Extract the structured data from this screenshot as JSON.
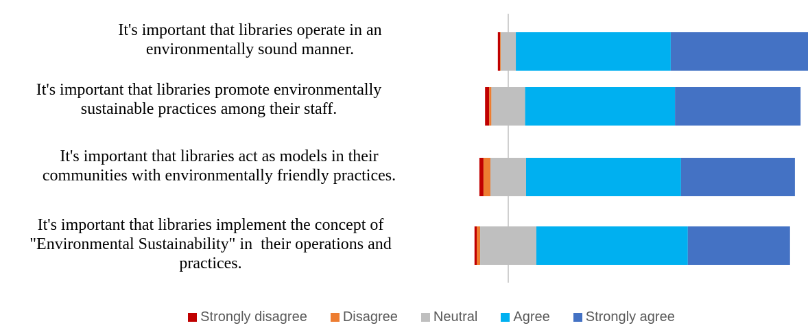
{
  "chart_data": {
    "type": "diverging_bar",
    "categories": [
      "It's important that libraries operate in an environmentally sound manner.",
      "It's important that libraries promote environmentally sustainable practices among their staff.",
      "It's important that libraries act as models in their communities with environmentally friendly practices.",
      "It's important that libraries implement the concept of \"Environmental Sustainability\" in  their operations and practices."
    ],
    "series": [
      {
        "name": "Strongly disagree",
        "color": "#c00000",
        "values": [
          0.7,
          1.3,
          1.3,
          0.7
        ]
      },
      {
        "name": "Disagree",
        "color": "#ed7d31",
        "values": [
          0.2,
          0.7,
          2.2,
          1.1
        ]
      },
      {
        "name": "Neutral",
        "color": "#bfbfbf",
        "values": [
          4.8,
          10.7,
          11.3,
          17.8
        ]
      },
      {
        "name": "Agree",
        "color": "#00b0f0",
        "values": [
          49.1,
          47.5,
          49.1,
          48.0
        ]
      },
      {
        "name": "Strongly agree",
        "color": "#4472c4",
        "values": [
          45.2,
          39.8,
          36.1,
          32.4
        ]
      }
    ]
  }
}
